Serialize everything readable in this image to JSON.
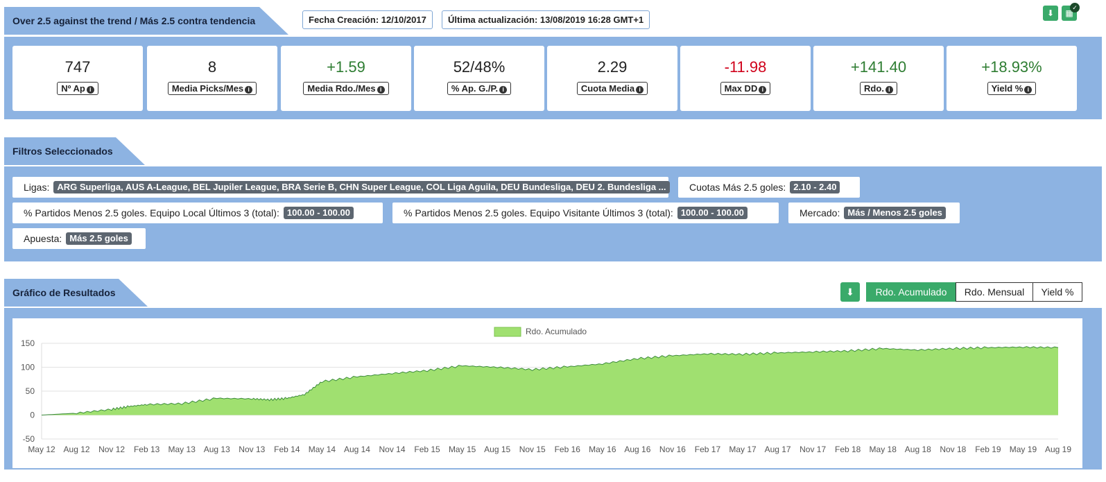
{
  "header": {
    "title": "Over 2.5 against the trend / Más 2.5 contra tendencia",
    "created": "Fecha Creación: 12/10/2017",
    "updated": "Última actualización: 13/08/2019 16:28 GMT+1"
  },
  "stats": [
    {
      "value": "747",
      "label": "Nº Ap",
      "tone": "neu"
    },
    {
      "value": "8",
      "label": "Media Picks/Mes",
      "tone": "neu"
    },
    {
      "value": "+1.59",
      "label": "Media Rdo./Mes",
      "tone": "pos"
    },
    {
      "value": "52/48%",
      "label": "% Ap. G./P.",
      "tone": "neu"
    },
    {
      "value": "2.29",
      "label": "Cuota Media",
      "tone": "neu"
    },
    {
      "value": "-11.98",
      "label": "Max DD",
      "tone": "neg"
    },
    {
      "value": "+141.40",
      "label": "Rdo.",
      "tone": "pos"
    },
    {
      "value": "+18.93%",
      "label": "Yield %",
      "tone": "pos"
    }
  ],
  "filters": {
    "title": "Filtros Seleccionados",
    "items": [
      {
        "label": "Ligas:",
        "tag": "ARG Superliga, AUS A-League, BEL Jupiler League, BRA Serie B, CHN Super League, COL Liga Aguila, DEU Bundesliga, DEU 2. Bundesliga ..."
      },
      {
        "label": "Cuotas Más 2.5 goles:",
        "tag": "2.10 - 2.40"
      },
      {
        "label": "% Partidos Menos 2.5 goles. Equipo Local Últimos 3 (total):",
        "tag": "100.00 - 100.00"
      },
      {
        "label": "% Partidos Menos 2.5 goles. Equipo Visitante Últimos 3 (total):",
        "tag": "100.00 - 100.00"
      },
      {
        "label": "Mercado:",
        "tag": "Más / Menos 2.5 goles"
      },
      {
        "label": "Apuesta:",
        "tag": "Más 2.5 goles"
      }
    ]
  },
  "results": {
    "title": "Gráfico de Resultados",
    "tabs": [
      "Rdo. Acumulado",
      "Rdo. Mensual",
      "Yield %"
    ],
    "active_tab": 0
  },
  "colors": {
    "panel": "#8db3e2",
    "accent": "#3aaa6a",
    "area_fill": "#a0e070",
    "area_line": "#3c8b3c",
    "positive": "#2e7d32",
    "negative": "#d0021b"
  },
  "icons": {
    "download": "download-icon",
    "check": "check-icon",
    "info": "info-icon"
  },
  "chart_data": {
    "type": "area",
    "legend": [
      "Rdo. Acumulado"
    ],
    "legend_position": "top-center",
    "grid": true,
    "ylim": [
      -50,
      150
    ],
    "yticks": [
      150,
      100,
      50,
      0,
      -50
    ],
    "xticks": [
      "May 12",
      "Aug 12",
      "Nov 12",
      "Feb 13",
      "May 13",
      "Aug 13",
      "Nov 13",
      "Feb 14",
      "May 14",
      "Aug 14",
      "Nov 14",
      "Feb 15",
      "May 15",
      "Aug 15",
      "Nov 15",
      "Feb 16",
      "May 16",
      "Aug 16",
      "Nov 16",
      "Feb 17",
      "May 17",
      "Aug 17",
      "Nov 17",
      "Feb 18",
      "May 18",
      "Aug 18",
      "Nov 18",
      "Feb 19",
      "May 19",
      "Aug 19"
    ],
    "series": [
      {
        "name": "Rdo. Acumulado",
        "x": [
          0,
          1,
          2,
          2.5,
          3,
          4,
          5,
          6,
          6.5,
          7,
          7.5,
          8,
          9,
          10,
          11,
          12,
          13,
          14,
          15,
          16,
          17,
          18,
          19,
          20,
          21,
          22,
          23,
          24,
          25,
          26,
          27,
          28,
          29
        ],
        "values": [
          0,
          4,
          12,
          18,
          22,
          24,
          35,
          34,
          32,
          35,
          43,
          70,
          80,
          87,
          93,
          103,
          100,
          95,
          101,
          107,
          118,
          124,
          128,
          127,
          130,
          132,
          134,
          139,
          136,
          139,
          141,
          142,
          141
        ]
      }
    ]
  }
}
